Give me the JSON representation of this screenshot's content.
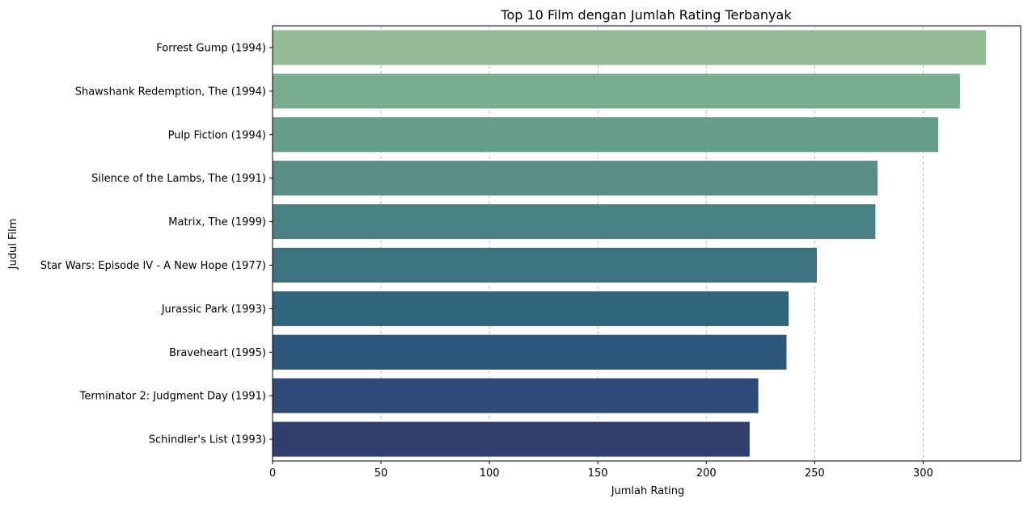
{
  "chart_data": {
    "type": "bar",
    "orientation": "horizontal",
    "title": "Top 10 Film dengan Jumlah Rating Terbanyak",
    "xlabel": "Jumlah Rating",
    "ylabel": "Judul Film",
    "xlim": [
      0,
      345
    ],
    "xticks": [
      0,
      50,
      100,
      150,
      200,
      250,
      300
    ],
    "grid": "vertical dashed",
    "categories": [
      "Forrest Gump (1994)",
      "Shawshank Redemption, The (1994)",
      "Pulp Fiction (1994)",
      "Silence of the Lambs, The (1991)",
      "Matrix, The (1999)",
      "Star Wars: Episode IV - A New Hope (1977)",
      "Jurassic Park (1993)",
      "Braveheart (1995)",
      "Terminator 2: Judgment Day (1991)",
      "Schindler's List (1993)"
    ],
    "values": [
      329,
      317,
      307,
      279,
      278,
      251,
      238,
      237,
      224,
      220
    ],
    "colors": [
      "#93bb96",
      "#7aac91",
      "#669e8c",
      "#578f87",
      "#4a8182",
      "#3d7380",
      "#31657e",
      "#2d587c",
      "#2e4a78",
      "#323e70"
    ]
  }
}
